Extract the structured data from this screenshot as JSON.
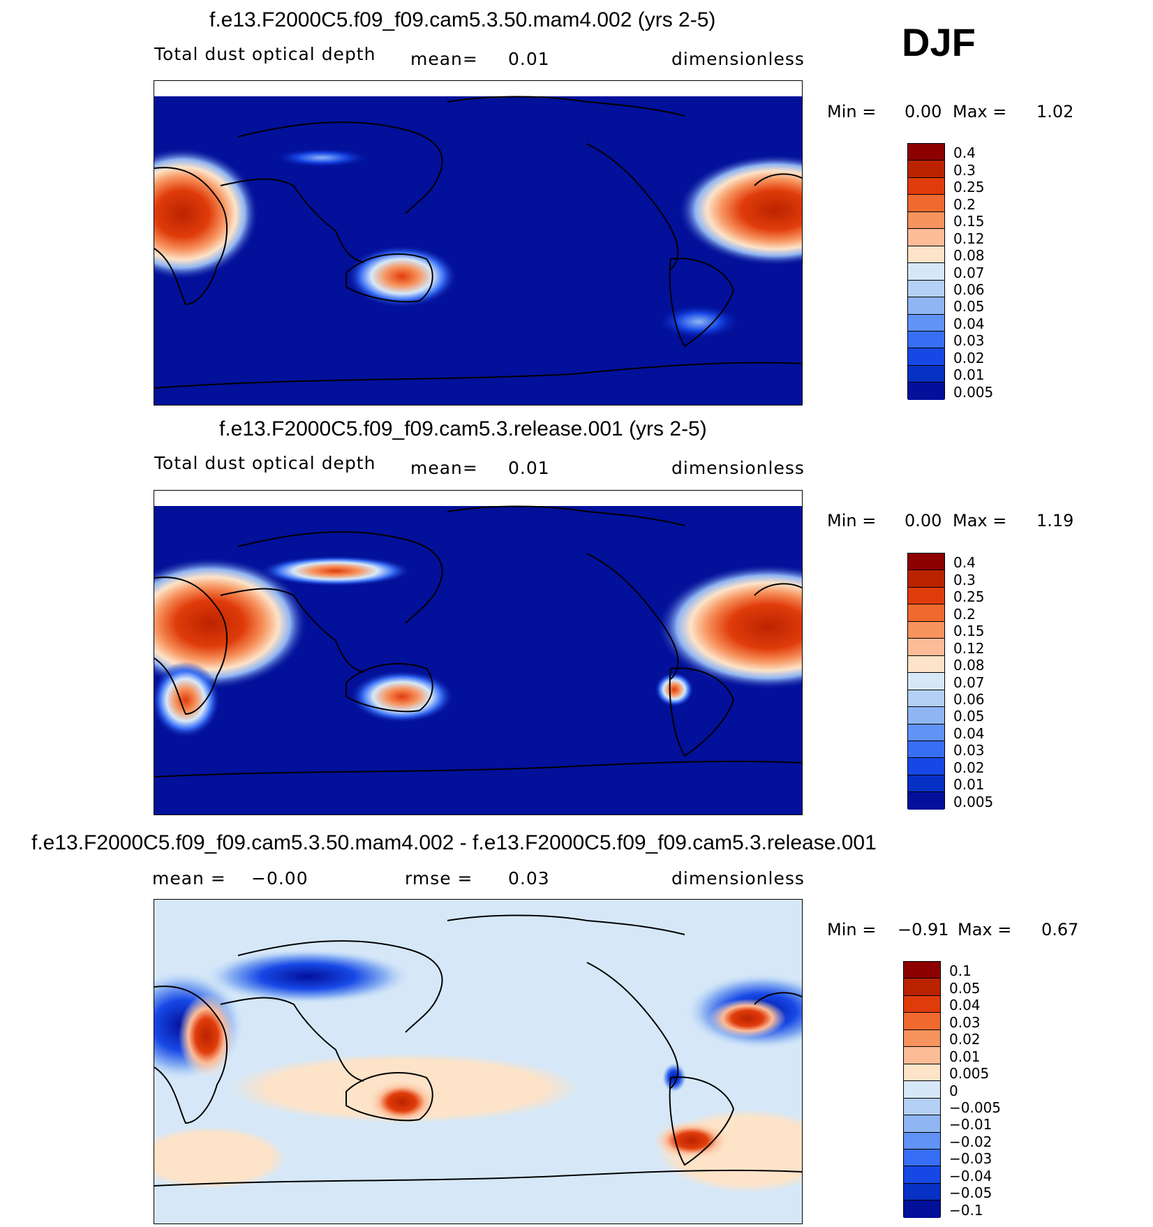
{
  "season": "DJF",
  "panels": [
    {
      "title": "f.e13.F2000C5.f09_f09.cam5.3.50.mam4.002 (yrs 2-5)",
      "variable": "Total dust optical depth",
      "stat1_label": "mean=",
      "stat1_value": "0.01",
      "units": "dimensionless",
      "min_label": "Min =",
      "min_value": "0.00",
      "max_label": "Max =",
      "max_value": "1.02",
      "colorbar": {
        "colors": [
          "#8c0000",
          "#bb2300",
          "#e03c0a",
          "#f06a30",
          "#f7935e",
          "#fcbc98",
          "#fde3c8",
          "#d6e8f8",
          "#b4d0f5",
          "#8fb5f3",
          "#6192f5",
          "#386ef5",
          "#1748e6",
          "#0731c4",
          "#02109a"
        ],
        "labels": [
          "0.4",
          "0.3",
          "0.25",
          "0.2",
          "0.15",
          "0.12",
          "0.08",
          "0.07",
          "0.06",
          "0.05",
          "0.04",
          "0.03",
          "0.02",
          "0.01",
          "0.005"
        ]
      }
    },
    {
      "title": "f.e13.F2000C5.f09_f09.cam5.3.release.001 (yrs 2-5)",
      "variable": "Total dust optical depth",
      "stat1_label": "mean=",
      "stat1_value": "0.01",
      "units": "dimensionless",
      "min_label": "Min =",
      "min_value": "0.00",
      "max_label": "Max =",
      "max_value": "1.19",
      "colorbar": {
        "colors": [
          "#8c0000",
          "#bb2300",
          "#e03c0a",
          "#f06a30",
          "#f7935e",
          "#fcbc98",
          "#fde3c8",
          "#d6e8f8",
          "#b4d0f5",
          "#8fb5f3",
          "#6192f5",
          "#386ef5",
          "#1748e6",
          "#0731c4",
          "#02109a"
        ],
        "labels": [
          "0.4",
          "0.3",
          "0.25",
          "0.2",
          "0.15",
          "0.12",
          "0.08",
          "0.07",
          "0.06",
          "0.05",
          "0.04",
          "0.03",
          "0.02",
          "0.01",
          "0.005"
        ]
      }
    },
    {
      "title": "f.e13.F2000C5.f09_f09.cam5.3.50.mam4.002 - f.e13.F2000C5.f09_f09.cam5.3.release.001",
      "stat1_label": "mean =",
      "stat1_value": "−0.00",
      "stat2_label": "rmse =",
      "stat2_value": "0.03",
      "units": "dimensionless",
      "min_label": "Min =",
      "min_value": "−0.91",
      "max_label": "Max =",
      "max_value": "0.67",
      "colorbar": {
        "colors": [
          "#8c0000",
          "#bb2300",
          "#e03c0a",
          "#f06a30",
          "#f7935e",
          "#fcbc98",
          "#fde3c8",
          "#d6e8f8",
          "#b4d0f5",
          "#8fb5f3",
          "#6192f5",
          "#386ef5",
          "#1748e6",
          "#0731c4",
          "#02109a"
        ],
        "labels": [
          "0.1",
          "0.05",
          "0.04",
          "0.03",
          "0.02",
          "0.01",
          "0.005",
          "0",
          "−0.005",
          "−0.01",
          "−0.02",
          "−0.03",
          "−0.04",
          "−0.05",
          "−0.1"
        ]
      }
    }
  ]
}
